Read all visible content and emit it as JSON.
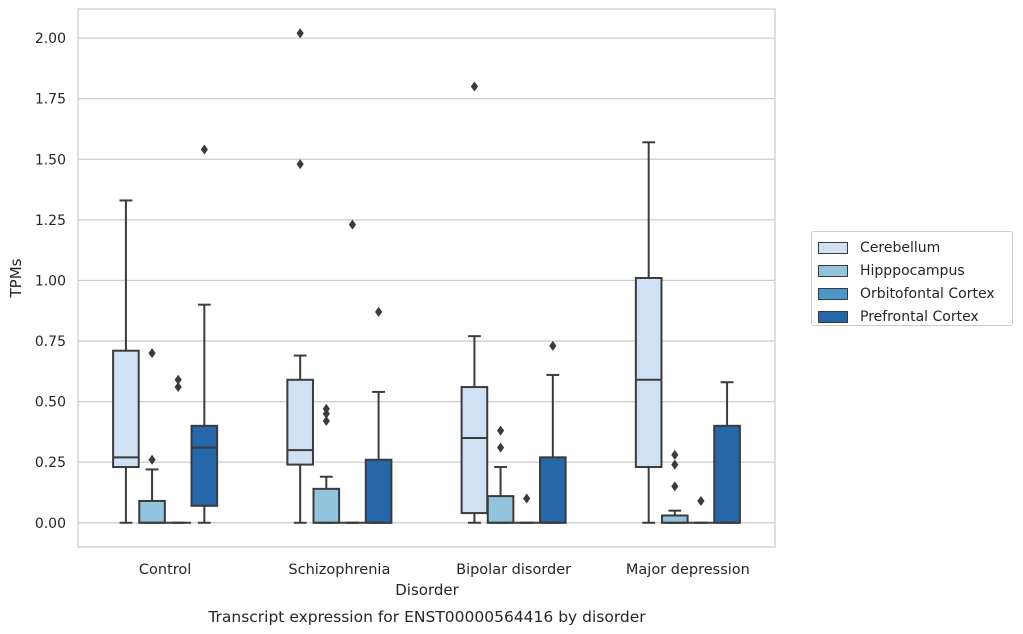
{
  "chart_data": {
    "type": "boxplot",
    "title": "Transcript expression for ENST00000564416 by disorder",
    "xlabel": "Disorder",
    "ylabel": "TPMs",
    "ylim": [
      -0.1,
      2.12
    ],
    "yticks": [
      "0.00",
      "0.25",
      "0.50",
      "0.75",
      "1.00",
      "1.25",
      "1.50",
      "1.75",
      "2.00"
    ],
    "categories": [
      "Control",
      "Schizophrenia",
      "Bipolar disorder",
      "Major depression"
    ],
    "grid": true,
    "legend_position": "right",
    "series": [
      {
        "name": "Cerebellum",
        "color": "#cfe1f2",
        "boxes": [
          {
            "whislo": 0.0,
            "q1": 0.23,
            "median": 0.27,
            "q3": 0.71,
            "whishi": 1.33,
            "fliers": []
          },
          {
            "whislo": 0.0,
            "q1": 0.24,
            "median": 0.3,
            "q3": 0.59,
            "whishi": 0.69,
            "fliers": [
              2.02,
              1.48
            ]
          },
          {
            "whislo": 0.0,
            "q1": 0.04,
            "median": 0.35,
            "q3": 0.56,
            "whishi": 0.77,
            "fliers": [
              1.8
            ]
          },
          {
            "whislo": 0.0,
            "q1": 0.23,
            "median": 0.59,
            "q3": 1.01,
            "whishi": 1.57,
            "fliers": []
          }
        ]
      },
      {
        "name": "Hipppocampus",
        "color": "#93c4de",
        "boxes": [
          {
            "whislo": 0.0,
            "q1": 0.0,
            "median": 0.0,
            "q3": 0.09,
            "whishi": 0.22,
            "fliers": [
              0.7,
              0.26
            ]
          },
          {
            "whislo": 0.0,
            "q1": 0.0,
            "median": 0.0,
            "q3": 0.14,
            "whishi": 0.19,
            "fliers": [
              0.47,
              0.45,
              0.42
            ]
          },
          {
            "whislo": 0.0,
            "q1": 0.0,
            "median": 0.0,
            "q3": 0.11,
            "whishi": 0.23,
            "fliers": [
              0.38,
              0.31
            ]
          },
          {
            "whislo": 0.0,
            "q1": 0.0,
            "median": 0.0,
            "q3": 0.03,
            "whishi": 0.05,
            "fliers": [
              0.28,
              0.24,
              0.15
            ]
          }
        ]
      },
      {
        "name": "Orbitofontal Cortex",
        "color": "#4a98c9",
        "boxes": [
          {
            "whislo": 0.0,
            "q1": 0.0,
            "median": 0.0,
            "q3": 0.0,
            "whishi": 0.0,
            "fliers": [
              0.59,
              0.56
            ]
          },
          {
            "whislo": 0.0,
            "q1": 0.0,
            "median": 0.0,
            "q3": 0.0,
            "whishi": 0.0,
            "fliers": [
              1.23
            ]
          },
          {
            "whislo": 0.0,
            "q1": 0.0,
            "median": 0.0,
            "q3": 0.0,
            "whishi": 0.0,
            "fliers": [
              0.1
            ]
          },
          {
            "whislo": 0.0,
            "q1": 0.0,
            "median": 0.0,
            "q3": 0.0,
            "whishi": 0.0,
            "fliers": [
              0.09
            ]
          }
        ]
      },
      {
        "name": "Prefrontal Cortex",
        "color": "#2567a8",
        "boxes": [
          {
            "whislo": 0.0,
            "q1": 0.07,
            "median": 0.31,
            "q3": 0.4,
            "whishi": 0.9,
            "fliers": [
              1.54
            ]
          },
          {
            "whislo": 0.0,
            "q1": 0.0,
            "median": 0.0,
            "q3": 0.26,
            "whishi": 0.54,
            "fliers": [
              0.87
            ]
          },
          {
            "whislo": 0.0,
            "q1": 0.0,
            "median": 0.0,
            "q3": 0.27,
            "whishi": 0.61,
            "fliers": [
              0.73
            ]
          },
          {
            "whislo": 0.0,
            "q1": 0.0,
            "median": 0.0,
            "q3": 0.4,
            "whishi": 0.58,
            "fliers": []
          }
        ]
      }
    ]
  }
}
